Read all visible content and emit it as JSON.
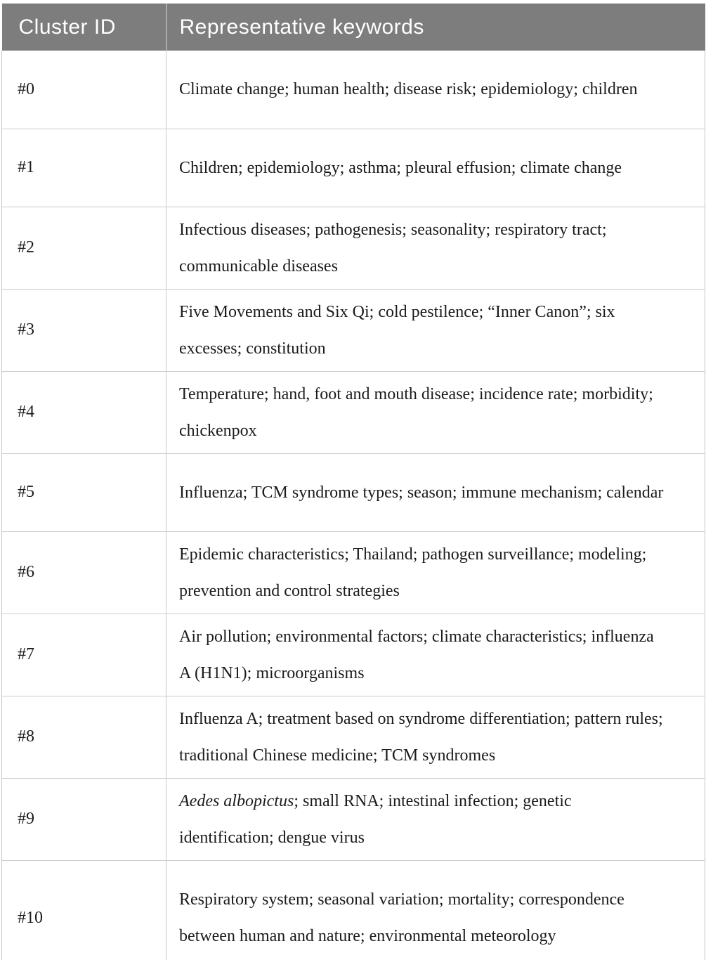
{
  "table": {
    "columns": [
      {
        "label": "Cluster ID"
      },
      {
        "label": "Representative keywords"
      }
    ],
    "rows": [
      {
        "id": "#0",
        "keywords": "Climate change; human health; disease risk; epidemiology; children"
      },
      {
        "id": "#1",
        "keywords": "Children; epidemiology; asthma; pleural effusion; climate change"
      },
      {
        "id": "#2",
        "keywords": "Infectious diseases; pathogenesis; seasonality; respiratory tract; communicable diseases"
      },
      {
        "id": "#3",
        "keywords": "Five Movements and Six Qi; cold pestilence; “Inner Canon”; six excesses; constitution"
      },
      {
        "id": "#4",
        "keywords": "Temperature; hand, foot and mouth disease; incidence rate; morbidity; chickenpox"
      },
      {
        "id": "#5",
        "keywords": "Influenza; TCM syndrome types; season; immune mechanism; calendar"
      },
      {
        "id": "#6",
        "keywords": "Epidemic characteristics; Thailand; pathogen surveillance; modeling; prevention and control strategies"
      },
      {
        "id": "#7",
        "keywords": "Air pollution; environmental factors; climate characteristics; influenza A (H1N1); microorganisms"
      },
      {
        "id": "#8",
        "keywords": "Influenza A; treatment based on syndrome differentiation; pattern rules; traditional Chinese medicine; TCM syndromes"
      },
      {
        "id": "#9",
        "italic": "Aedes albopictus",
        "rest": "; small RNA; intestinal infection; genetic identification; dengue virus"
      },
      {
        "id": "#10",
        "keywords": "Respiratory system; seasonal variation; mortality; correspondence between human and nature; environmental meteorology"
      }
    ],
    "colors": {
      "header_bg": "#7d7d7d",
      "header_text": "#ffffff",
      "body_text": "#1b1b1b",
      "grid_line": "#cacaca",
      "outer_border": "#b0b0b0",
      "page_bg": "#ffffff"
    }
  }
}
